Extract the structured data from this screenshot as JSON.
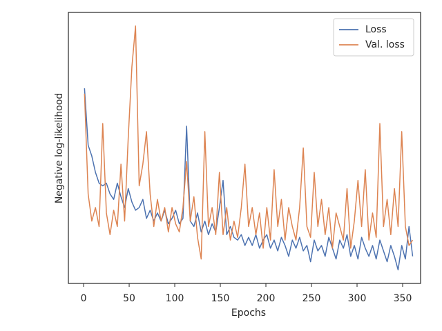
{
  "chart_data": {
    "type": "line",
    "xlabel": "Epochs",
    "ylabel": "Negative log-likelihood",
    "x": [
      1,
      5,
      9,
      13,
      17,
      21,
      25,
      29,
      33,
      37,
      41,
      45,
      49,
      53,
      57,
      61,
      65,
      69,
      73,
      77,
      81,
      85,
      89,
      93,
      97,
      101,
      105,
      109,
      113,
      117,
      121,
      125,
      129,
      133,
      137,
      141,
      145,
      149,
      153,
      157,
      161,
      165,
      169,
      173,
      177,
      181,
      185,
      189,
      193,
      197,
      201,
      205,
      209,
      213,
      217,
      221,
      225,
      229,
      233,
      237,
      241,
      245,
      249,
      253,
      257,
      261,
      265,
      269,
      273,
      277,
      281,
      285,
      289,
      293,
      297,
      301,
      305,
      309,
      313,
      317,
      321,
      325,
      329,
      333,
      337,
      341,
      345,
      349,
      353,
      357,
      361
    ],
    "series": [
      {
        "name": "Loss",
        "color": "#4c72b0",
        "values": [
          72,
          51,
          47,
          41,
          37,
          36,
          37,
          33,
          31,
          37,
          32,
          28,
          35,
          30,
          27,
          28,
          31,
          24,
          27,
          23,
          26,
          23,
          27,
          22,
          24,
          27,
          22,
          24,
          58,
          23,
          21,
          26,
          19,
          23,
          18,
          22,
          19,
          28,
          38,
          18,
          21,
          17,
          16,
          18,
          14,
          17,
          14,
          18,
          13,
          16,
          18,
          13,
          16,
          12,
          17,
          14,
          10,
          16,
          13,
          17,
          12,
          14,
          8,
          16,
          12,
          14,
          10,
          17,
          13,
          9,
          16,
          13,
          18,
          10,
          14,
          9,
          17,
          13,
          10,
          14,
          9,
          16,
          12,
          8,
          14,
          10,
          5,
          14,
          9,
          21,
          10
        ]
      },
      {
        "name": "Val. loss",
        "color": "#dd8452",
        "values": [
          70,
          33,
          23,
          28,
          21,
          59,
          26,
          18,
          27,
          21,
          44,
          23,
          54,
          80,
          95,
          36,
          44,
          56,
          33,
          21,
          31,
          23,
          28,
          19,
          28,
          22,
          19,
          28,
          45,
          23,
          32,
          17,
          9,
          56,
          21,
          28,
          18,
          41,
          18,
          28,
          16,
          23,
          17,
          28,
          44,
          21,
          28,
          18,
          26,
          13,
          28,
          16,
          42,
          21,
          31,
          16,
          28,
          21,
          16,
          28,
          50,
          21,
          17,
          41,
          21,
          31,
          18,
          28,
          13,
          26,
          21,
          16,
          35,
          13,
          23,
          38,
          21,
          42,
          16,
          26,
          17,
          59,
          21,
          31,
          18,
          35,
          21,
          56,
          21,
          14,
          16
        ]
      }
    ],
    "xlim": [
      -16.7,
      369.7
    ],
    "xticks": [
      0,
      50,
      100,
      150,
      200,
      250,
      300,
      350
    ],
    "ylim": [
      0,
      100
    ],
    "grid": false,
    "legend": "upper right"
  }
}
